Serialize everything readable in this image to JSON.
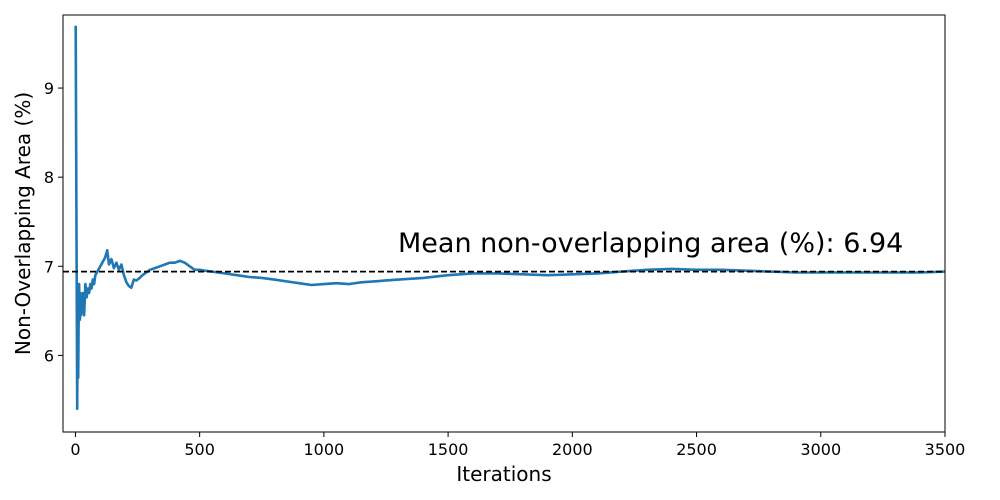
{
  "chart_data": {
    "type": "line",
    "title": "",
    "xlabel": "Iterations",
    "ylabel": "Non-Overlapping Area (%)",
    "xlim": [
      -50,
      3500
    ],
    "ylim": [
      5.14,
      9.82
    ],
    "xticks": [
      0,
      500,
      1000,
      1500,
      2000,
      2500,
      3000,
      3500
    ],
    "yticks": [
      6,
      7,
      8,
      9
    ],
    "grid": false,
    "series": [
      {
        "color": "#1f77b4",
        "x": [
          1,
          3,
          5,
          7,
          9,
          11,
          13,
          15,
          18,
          20,
          23,
          26,
          30,
          35,
          40,
          45,
          50,
          55,
          60,
          65,
          70,
          75,
          80,
          90,
          100,
          110,
          120,
          128,
          135,
          145,
          155,
          165,
          175,
          185,
          195,
          205,
          215,
          225,
          235,
          245,
          255,
          270,
          285,
          300,
          320,
          340,
          360,
          380,
          400,
          420,
          440,
          460,
          480,
          500,
          520,
          550,
          600,
          650,
          700,
          750,
          800,
          850,
          900,
          950,
          1000,
          1050,
          1100,
          1150,
          1200,
          1300,
          1400,
          1500,
          1600,
          1700,
          1800,
          1900,
          2000,
          2100,
          2200,
          2300,
          2400,
          2500,
          2600,
          2700,
          2800,
          2900,
          3000,
          3100,
          3200,
          3300,
          3400,
          3500
        ],
        "values": [
          9.7,
          8.2,
          6.8,
          5.4,
          6.6,
          5.75,
          6.5,
          6.8,
          6.4,
          6.7,
          6.45,
          6.55,
          6.7,
          6.45,
          6.8,
          6.65,
          6.75,
          6.7,
          6.8,
          6.75,
          6.85,
          6.8,
          6.9,
          6.95,
          7.0,
          7.05,
          7.1,
          7.18,
          7.02,
          7.08,
          6.98,
          7.04,
          6.96,
          7.02,
          6.9,
          6.82,
          6.78,
          6.76,
          6.85,
          6.84,
          6.86,
          6.9,
          6.93,
          6.96,
          6.98,
          7.0,
          7.02,
          7.04,
          7.04,
          7.06,
          7.04,
          7.0,
          6.96,
          6.96,
          6.95,
          6.94,
          6.92,
          6.9,
          6.88,
          6.87,
          6.85,
          6.83,
          6.81,
          6.79,
          6.8,
          6.81,
          6.8,
          6.82,
          6.83,
          6.85,
          6.87,
          6.9,
          6.92,
          6.92,
          6.91,
          6.9,
          6.91,
          6.92,
          6.94,
          6.96,
          6.97,
          6.96,
          6.96,
          6.95,
          6.94,
          6.93,
          6.93,
          6.93,
          6.93,
          6.93,
          6.93,
          6.94
        ]
      }
    ],
    "mean_line": {
      "value": 6.94,
      "color": "#000000",
      "style": "dashed"
    },
    "annotation": "Mean non-overlapping area (%): 6.94"
  }
}
